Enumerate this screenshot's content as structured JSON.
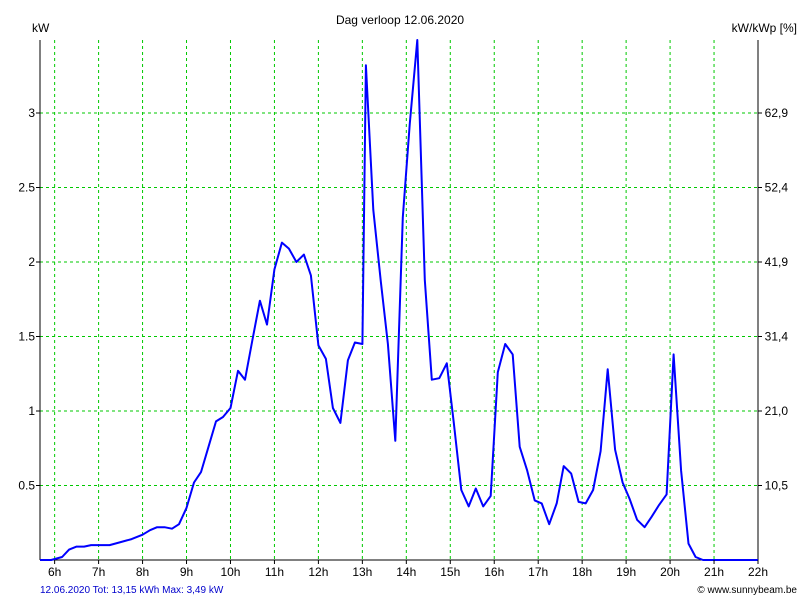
{
  "header": {
    "title": "Dag  verloop 12.06.2020",
    "left_unit": "kW",
    "right_unit": "kW/kWp [%]"
  },
  "footer": {
    "summary": "12.06.2020 Tot: 13,15 kWh Max: 3,49 kW",
    "credit": "© www.sunnybeam.be"
  },
  "colors": {
    "line": "#0000ff",
    "grid": "#00c800",
    "axis": "#000000",
    "footer_text": "#0000cc"
  },
  "chart_data": {
    "type": "line",
    "title": "Dag  verloop 12.06.2020",
    "ylabel": "kW",
    "y2label": "kW/kWp [%]",
    "xlim": [
      5.667,
      22
    ],
    "ylim": [
      0,
      3.49
    ],
    "grid": true,
    "x_ticks": [
      {
        "value": 6,
        "label": "6h"
      },
      {
        "value": 7,
        "label": "7h"
      },
      {
        "value": 8,
        "label": "8h"
      },
      {
        "value": 9,
        "label": "9h"
      },
      {
        "value": 10,
        "label": "10h"
      },
      {
        "value": 11,
        "label": "11h"
      },
      {
        "value": 12,
        "label": "12h"
      },
      {
        "value": 13,
        "label": "13h"
      },
      {
        "value": 14,
        "label": "14h"
      },
      {
        "value": 15,
        "label": "15h"
      },
      {
        "value": 16,
        "label": "16h"
      },
      {
        "value": 17,
        "label": "17h"
      },
      {
        "value": 18,
        "label": "18h"
      },
      {
        "value": 19,
        "label": "19h"
      },
      {
        "value": 20,
        "label": "20h"
      },
      {
        "value": 21,
        "label": "21h"
      },
      {
        "value": 22,
        "label": "22h"
      }
    ],
    "y_ticks": [
      {
        "value": 0.5,
        "label": "0.5"
      },
      {
        "value": 1,
        "label": "1"
      },
      {
        "value": 1.5,
        "label": "1.5"
      },
      {
        "value": 2,
        "label": "2"
      },
      {
        "value": 2.5,
        "label": "2.5"
      },
      {
        "value": 3,
        "label": "3"
      }
    ],
    "y2_ticks": [
      {
        "value": 0.5,
        "label": "10,5"
      },
      {
        "value": 1,
        "label": "21,0"
      },
      {
        "value": 1.5,
        "label": "31,4"
      },
      {
        "value": 2,
        "label": "41,9"
      },
      {
        "value": 2.5,
        "label": "52,4"
      },
      {
        "value": 3,
        "label": "62,9"
      }
    ],
    "series": [
      {
        "values": [
          [
            5.667,
            0
          ],
          [
            5.92,
            0
          ],
          [
            6.17,
            0.02
          ],
          [
            6.33,
            0.07
          ],
          [
            6.5,
            0.09
          ],
          [
            6.67,
            0.09
          ],
          [
            6.83,
            0.1
          ],
          [
            7.0,
            0.1
          ],
          [
            7.25,
            0.1
          ],
          [
            7.5,
            0.12
          ],
          [
            7.75,
            0.14
          ],
          [
            8.0,
            0.17
          ],
          [
            8.17,
            0.2
          ],
          [
            8.33,
            0.22
          ],
          [
            8.5,
            0.22
          ],
          [
            8.67,
            0.21
          ],
          [
            8.83,
            0.24
          ],
          [
            9.0,
            0.35
          ],
          [
            9.17,
            0.52
          ],
          [
            9.33,
            0.59
          ],
          [
            9.5,
            0.76
          ],
          [
            9.67,
            0.93
          ],
          [
            9.83,
            0.96
          ],
          [
            10.0,
            1.02
          ],
          [
            10.17,
            1.27
          ],
          [
            10.33,
            1.21
          ],
          [
            10.5,
            1.48
          ],
          [
            10.67,
            1.74
          ],
          [
            10.83,
            1.58
          ],
          [
            11.0,
            1.95
          ],
          [
            11.17,
            2.13
          ],
          [
            11.33,
            2.09
          ],
          [
            11.5,
            2.0
          ],
          [
            11.67,
            2.05
          ],
          [
            11.83,
            1.91
          ],
          [
            12.0,
            1.44
          ],
          [
            12.17,
            1.35
          ],
          [
            12.33,
            1.02
          ],
          [
            12.5,
            0.92
          ],
          [
            12.67,
            1.34
          ],
          [
            12.83,
            1.46
          ],
          [
            13.0,
            1.45
          ],
          [
            13.08,
            3.32
          ],
          [
            13.25,
            2.35
          ],
          [
            13.42,
            1.87
          ],
          [
            13.58,
            1.45
          ],
          [
            13.75,
            0.8
          ],
          [
            13.92,
            2.3
          ],
          [
            14.08,
            2.93
          ],
          [
            14.25,
            3.49
          ],
          [
            14.42,
            1.88
          ],
          [
            14.58,
            1.21
          ],
          [
            14.75,
            1.22
          ],
          [
            14.92,
            1.32
          ],
          [
            15.08,
            0.92
          ],
          [
            15.25,
            0.47
          ],
          [
            15.42,
            0.36
          ],
          [
            15.58,
            0.48
          ],
          [
            15.75,
            0.36
          ],
          [
            15.92,
            0.43
          ],
          [
            16.08,
            1.26
          ],
          [
            16.25,
            1.45
          ],
          [
            16.42,
            1.38
          ],
          [
            16.58,
            0.76
          ],
          [
            16.75,
            0.6
          ],
          [
            16.92,
            0.4
          ],
          [
            17.08,
            0.38
          ],
          [
            17.25,
            0.24
          ],
          [
            17.42,
            0.38
          ],
          [
            17.58,
            0.63
          ],
          [
            17.75,
            0.58
          ],
          [
            17.92,
            0.39
          ],
          [
            18.08,
            0.38
          ],
          [
            18.25,
            0.47
          ],
          [
            18.42,
            0.73
          ],
          [
            18.58,
            1.28
          ],
          [
            18.75,
            0.74
          ],
          [
            18.92,
            0.52
          ],
          [
            19.08,
            0.41
          ],
          [
            19.25,
            0.27
          ],
          [
            19.42,
            0.22
          ],
          [
            19.58,
            0.29
          ],
          [
            19.75,
            0.37
          ],
          [
            19.92,
            0.44
          ],
          [
            20.08,
            1.38
          ],
          [
            20.25,
            0.6
          ],
          [
            20.42,
            0.11
          ],
          [
            20.58,
            0.02
          ],
          [
            20.75,
            0
          ],
          [
            21.0,
            0
          ],
          [
            21.5,
            0
          ],
          [
            22.0,
            0
          ]
        ]
      }
    ]
  }
}
